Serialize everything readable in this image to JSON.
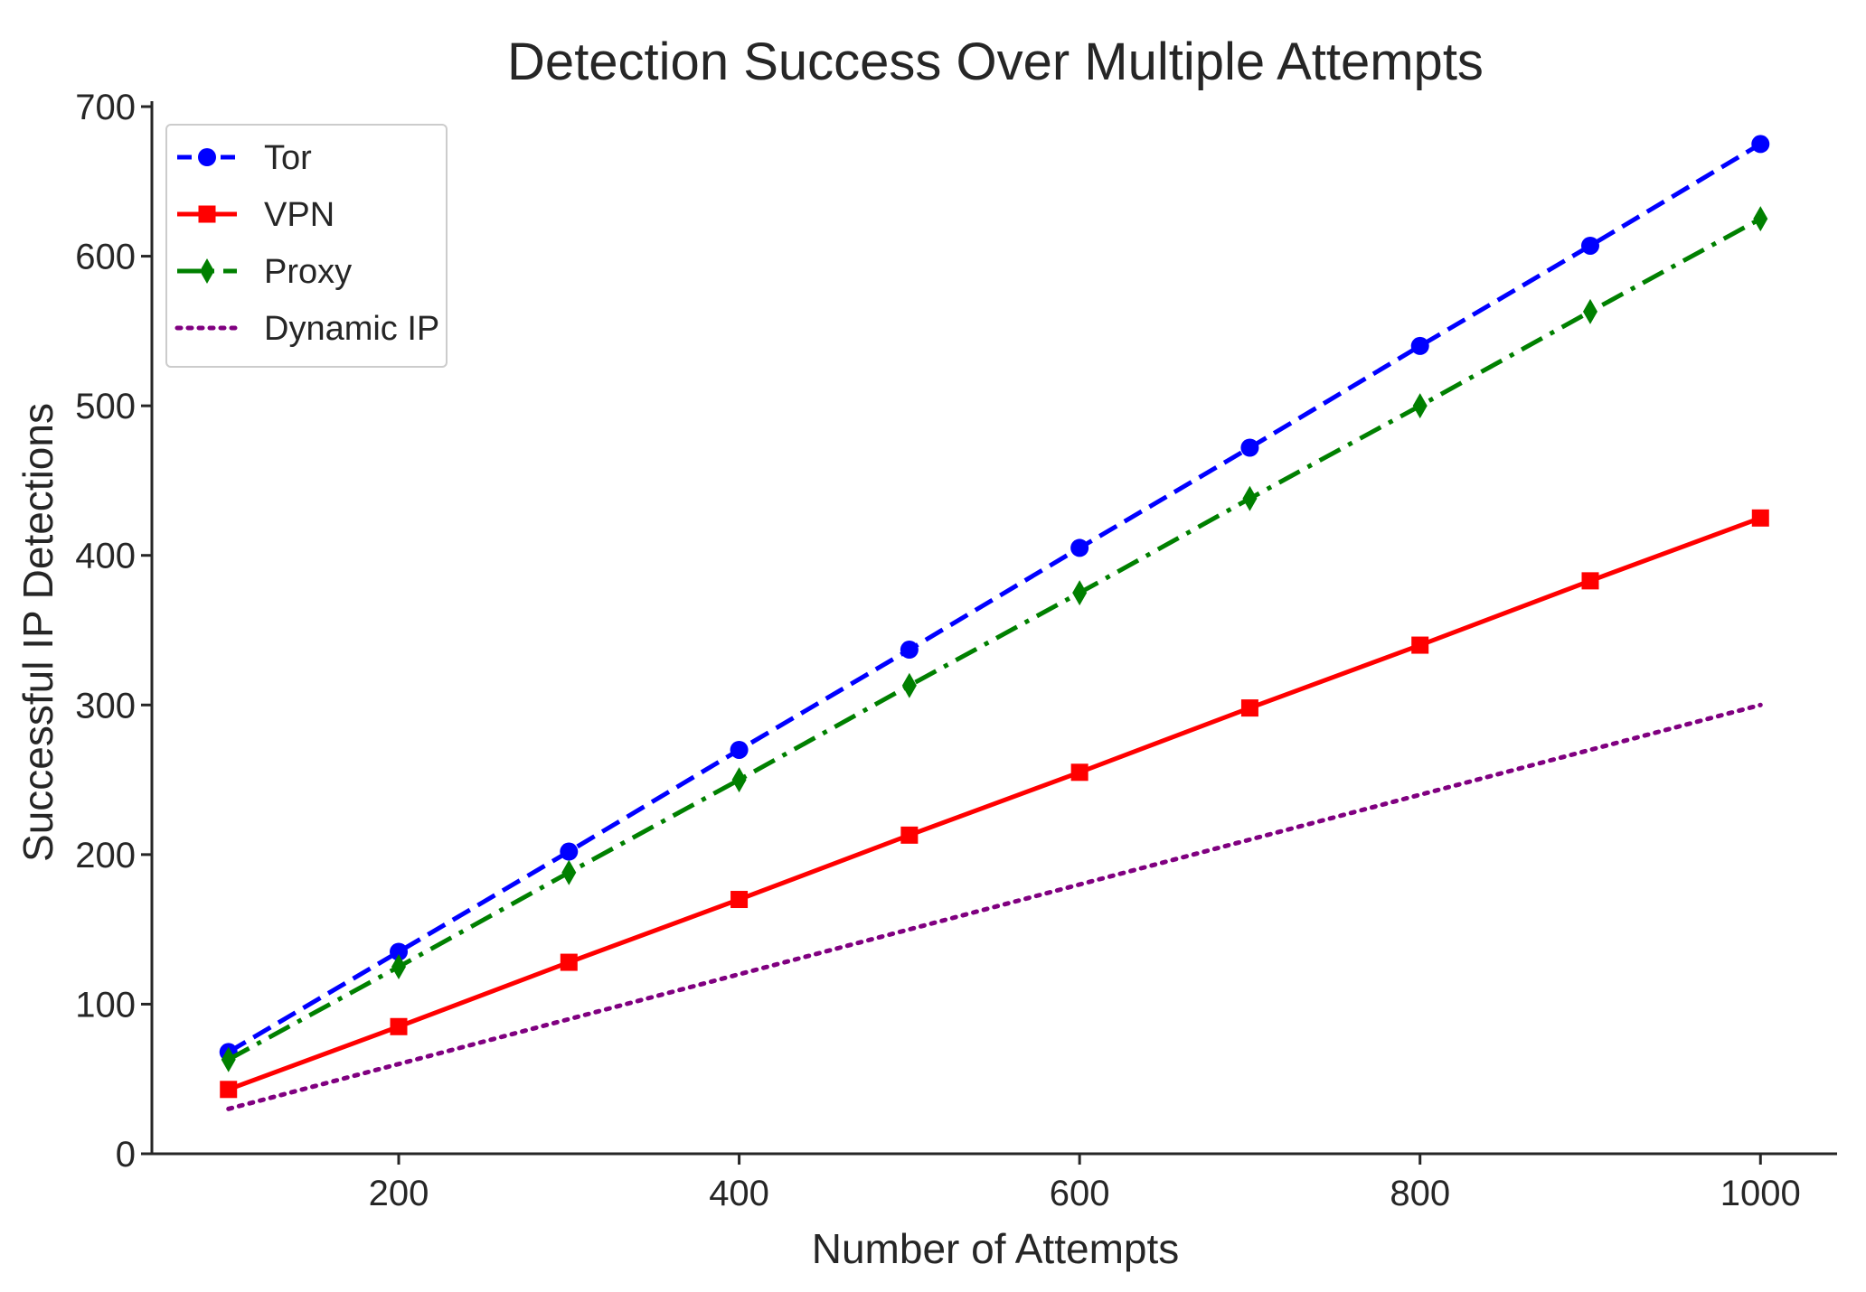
{
  "chart_data": {
    "type": "line",
    "title": "Detection Success Over Multiple Attempts",
    "xlabel": "Number of Attempts",
    "ylabel": "Successful IP Detections",
    "x": [
      100,
      200,
      300,
      400,
      500,
      600,
      700,
      800,
      900,
      1000
    ],
    "xlim": [
      55,
      1045
    ],
    "ylim": [
      0,
      700
    ],
    "x_ticks": [
      200,
      400,
      600,
      800,
      1000
    ],
    "y_ticks": [
      0,
      100,
      200,
      300,
      400,
      500,
      600,
      700
    ],
    "grid": false,
    "legend_position": "upper-left",
    "series": [
      {
        "name": "Tor",
        "values": [
          68,
          135,
          202,
          270,
          337,
          405,
          472,
          540,
          607,
          675
        ],
        "color": "#0000ff",
        "line_style": "dashed",
        "marker": "circle"
      },
      {
        "name": "VPN",
        "values": [
          43,
          85,
          128,
          170,
          213,
          255,
          298,
          340,
          383,
          425
        ],
        "color": "#ff0000",
        "line_style": "solid",
        "marker": "square"
      },
      {
        "name": "Proxy",
        "values": [
          63,
          125,
          188,
          250,
          313,
          375,
          438,
          500,
          563,
          625
        ],
        "color": "#008000",
        "line_style": "dash-dot",
        "marker": "thin-diamond"
      },
      {
        "name": "Dynamic IP",
        "values": [
          30,
          60,
          90,
          120,
          150,
          180,
          210,
          240,
          270,
          300
        ],
        "color": "#800080",
        "line_style": "dotted",
        "marker": "none"
      }
    ]
  }
}
